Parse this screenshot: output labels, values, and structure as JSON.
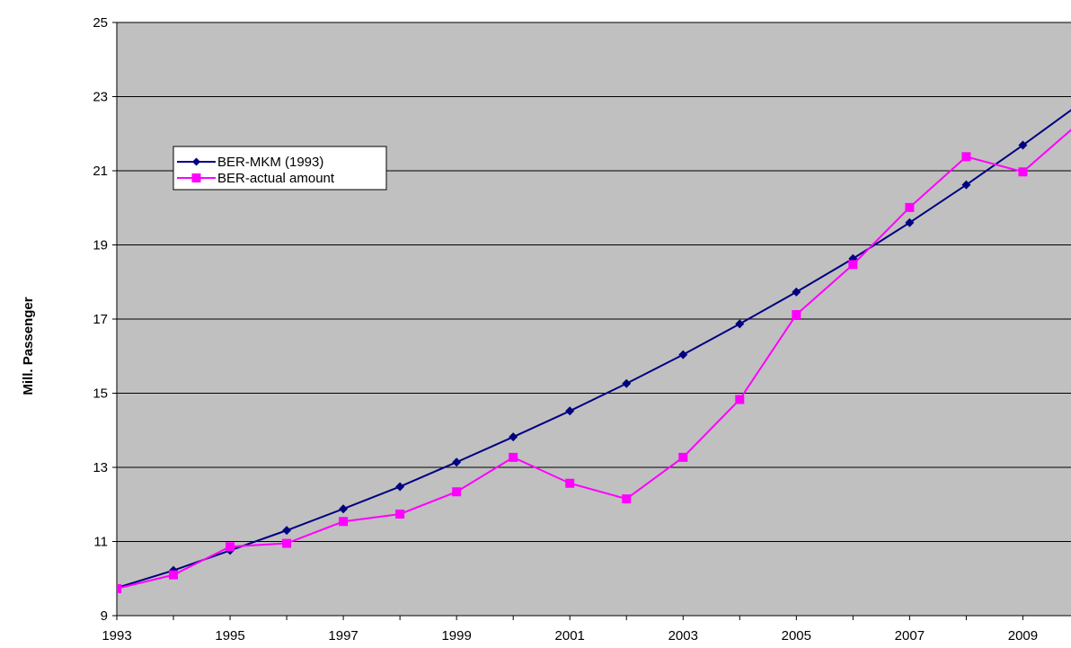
{
  "chart_data": {
    "type": "line",
    "title": "",
    "xlabel": "",
    "ylabel": "Mill. Passenger",
    "x": [
      1993,
      1994,
      1995,
      1996,
      1997,
      1998,
      1999,
      2000,
      2001,
      2002,
      2003,
      2004,
      2005,
      2006,
      2007,
      2008,
      2009,
      2010
    ],
    "x_ticks": [
      "1993",
      "1995",
      "1997",
      "1999",
      "2001",
      "2003",
      "2005",
      "2007",
      "2009"
    ],
    "y_ticks": [
      "9",
      "11",
      "13",
      "15",
      "17",
      "19",
      "21",
      "23",
      "25"
    ],
    "xlim": [
      1993,
      2009.85
    ],
    "ylim": [
      9,
      25
    ],
    "grid": true,
    "legend_position": "top-left",
    "colors": {
      "plot_background": "#c0c0c0"
    },
    "series": [
      {
        "name": "BER-MKM (1993)",
        "color": "#000080",
        "marker": "diamond",
        "values": [
          9.75,
          10.22,
          10.76,
          11.3,
          11.88,
          12.48,
          13.14,
          13.82,
          14.52,
          15.26,
          16.04,
          16.87,
          17.73,
          18.63,
          19.6,
          20.62,
          21.69,
          22.8
        ]
      },
      {
        "name": "BER-actual amount",
        "color": "#ff00ff",
        "marker": "square",
        "values": [
          9.73,
          10.1,
          10.86,
          10.95,
          11.54,
          11.74,
          12.34,
          13.27,
          12.57,
          12.15,
          13.27,
          14.83,
          17.12,
          18.47,
          20.01,
          21.38,
          20.97,
          22.3
        ]
      }
    ]
  }
}
